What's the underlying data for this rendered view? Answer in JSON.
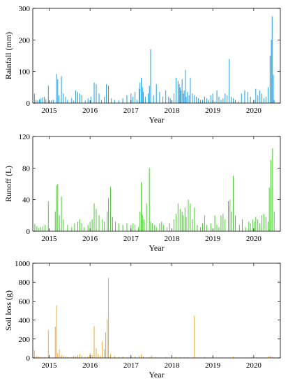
{
  "colors": {
    "rainfall": "#1f9ee0",
    "runoff": "#4cc934",
    "soil_loss": "#f2a72a"
  },
  "chart_data": [
    {
      "type": "bar",
      "id": "rainfall",
      "title": "",
      "xlabel": "Year",
      "ylabel": "Rainfall (mm)",
      "xlim": [
        2014.6,
        2020.65
      ],
      "ylim": [
        0,
        300
      ],
      "yticks": [
        0,
        100,
        200,
        300
      ],
      "xticks": [
        2015,
        2016,
        2017,
        2018,
        2019,
        2020
      ],
      "xtick_labels": [
        "2015",
        "2016",
        "2017",
        "2018",
        "2019",
        "2020"
      ],
      "series": [
        {
          "x": [
            2014.64,
            2014.68,
            2014.72,
            2014.76,
            2014.8,
            2014.84,
            2014.88,
            2014.92,
            2014.98,
            2015.05,
            2015.1,
            2015.18,
            2015.21,
            2015.24,
            2015.3,
            2015.35,
            2015.4,
            2015.45,
            2015.55,
            2015.6,
            2015.65,
            2015.7,
            2015.75,
            2015.8,
            2015.88,
            2015.95,
            2016.02,
            2016.1,
            2016.15,
            2016.22,
            2016.28,
            2016.35,
            2016.4,
            2016.45,
            2016.52,
            2016.6,
            2016.7,
            2016.8,
            2016.9,
            2017.0,
            2017.05,
            2017.1,
            2017.15,
            2017.2,
            2017.22,
            2017.25,
            2017.28,
            2017.3,
            2017.35,
            2017.42,
            2017.45,
            2017.48,
            2017.55,
            2017.62,
            2017.7,
            2017.78,
            2017.85,
            2017.92,
            2017.96,
            2018.05,
            2018.1,
            2018.15,
            2018.18,
            2018.2,
            2018.22,
            2018.25,
            2018.28,
            2018.3,
            2018.33,
            2018.35,
            2018.38,
            2018.42,
            2018.45,
            2018.5,
            2018.55,
            2018.6,
            2018.65,
            2018.7,
            2018.75,
            2018.8,
            2018.85,
            2018.9,
            2018.95,
            2019.0,
            2019.05,
            2019.1,
            2019.15,
            2019.2,
            2019.25,
            2019.3,
            2019.35,
            2019.4,
            2019.45,
            2019.5,
            2019.55,
            2019.62,
            2019.7,
            2019.78,
            2019.85,
            2019.92,
            2020.0,
            2020.05,
            2020.1,
            2020.15,
            2020.2,
            2020.25,
            2020.3,
            2020.35,
            2020.4,
            2020.43,
            2020.45,
            2020.48,
            2020.5
          ],
          "y": [
            30,
            10,
            8,
            12,
            15,
            18,
            20,
            12,
            55,
            8,
            10,
            92,
            75,
            25,
            85,
            30,
            20,
            10,
            15,
            8,
            40,
            35,
            30,
            25,
            8,
            15,
            20,
            65,
            60,
            30,
            10,
            20,
            60,
            55,
            15,
            10,
            8,
            15,
            25,
            30,
            20,
            35,
            10,
            45,
            65,
            80,
            50,
            35,
            20,
            30,
            55,
            170,
            25,
            60,
            35,
            20,
            40,
            20,
            15,
            30,
            80,
            70,
            60,
            50,
            40,
            75,
            30,
            40,
            105,
            20,
            35,
            25,
            80,
            30,
            25,
            20,
            15,
            10,
            10,
            20,
            15,
            10,
            25,
            30,
            5,
            40,
            20,
            10,
            15,
            30,
            25,
            140,
            20,
            15,
            10,
            5,
            30,
            40,
            35,
            20,
            10,
            45,
            25,
            40,
            30,
            15,
            20,
            50,
            150,
            200,
            275,
            90,
            10
          ]
        }
      ]
    },
    {
      "type": "bar",
      "id": "runoff",
      "title": "",
      "xlabel": "Year",
      "ylabel": "Runoff (L)",
      "xlim": [
        2014.6,
        2020.65
      ],
      "ylim": [
        0,
        120
      ],
      "yticks": [
        0,
        40,
        80,
        120
      ],
      "xticks": [
        2015,
        2016,
        2017,
        2018,
        2019,
        2020
      ],
      "xtick_labels": [
        "2015",
        "2016",
        "2017",
        "2018",
        "2019",
        "2020"
      ],
      "series": [
        {
          "x": [
            2014.65,
            2014.7,
            2014.75,
            2014.8,
            2014.85,
            2014.9,
            2014.98,
            2015.15,
            2015.18,
            2015.21,
            2015.25,
            2015.3,
            2015.35,
            2015.45,
            2015.55,
            2015.62,
            2015.7,
            2015.75,
            2015.8,
            2015.85,
            2015.95,
            2016.0,
            2016.05,
            2016.1,
            2016.15,
            2016.22,
            2016.3,
            2016.35,
            2016.42,
            2016.45,
            2016.5,
            2016.55,
            2016.62,
            2016.7,
            2016.8,
            2016.9,
            2017.0,
            2017.05,
            2017.1,
            2017.18,
            2017.22,
            2017.25,
            2017.28,
            2017.32,
            2017.38,
            2017.45,
            2017.48,
            2017.52,
            2017.58,
            2017.62,
            2017.7,
            2017.75,
            2017.8,
            2017.88,
            2017.95,
            2018.05,
            2018.1,
            2018.15,
            2018.2,
            2018.25,
            2018.28,
            2018.32,
            2018.35,
            2018.4,
            2018.45,
            2018.5,
            2018.55,
            2018.62,
            2018.7,
            2018.75,
            2018.8,
            2018.85,
            2018.95,
            2019.05,
            2019.1,
            2019.15,
            2019.2,
            2019.25,
            2019.3,
            2019.38,
            2019.42,
            2019.45,
            2019.5,
            2019.55,
            2019.65,
            2019.72,
            2019.8,
            2019.88,
            2019.92,
            2019.98,
            2020.02,
            2020.05,
            2020.1,
            2020.15,
            2020.2,
            2020.25,
            2020.3,
            2020.35,
            2020.38,
            2020.42,
            2020.46,
            2020.5
          ],
          "y": [
            9,
            6,
            4,
            5,
            6,
            8,
            38,
            25,
            58,
            60,
            20,
            44,
            15,
            8,
            5,
            10,
            12,
            15,
            10,
            5,
            8,
            12,
            15,
            35,
            28,
            20,
            15,
            12,
            25,
            42,
            56,
            18,
            12,
            10,
            8,
            10,
            8,
            10,
            8,
            5,
            25,
            62,
            20,
            15,
            35,
            80,
            12,
            10,
            8,
            5,
            10,
            12,
            8,
            5,
            10,
            15,
            22,
            35,
            28,
            25,
            20,
            30,
            18,
            40,
            35,
            15,
            30,
            8,
            5,
            10,
            20,
            8,
            10,
            20,
            8,
            5,
            20,
            22,
            15,
            38,
            40,
            25,
            70,
            20,
            8,
            15,
            5,
            12,
            10,
            15,
            12,
            18,
            15,
            10,
            20,
            22,
            18,
            12,
            55,
            90,
            105,
            25
          ]
        }
      ]
    },
    {
      "type": "bar",
      "id": "soil_loss",
      "title": "",
      "xlabel": "Year",
      "ylabel": "Soil loss (g)",
      "xlim": [
        2014.6,
        2020.65
      ],
      "ylim": [
        0,
        1000
      ],
      "yticks": [
        0,
        200,
        400,
        600,
        800,
        1000
      ],
      "xticks": [
        2015,
        2016,
        2017,
        2018,
        2019,
        2020
      ],
      "xtick_labels": [
        "2015",
        "2016",
        "2017",
        "2018",
        "2019",
        "2020"
      ],
      "series": [
        {
          "x": [
            2014.64,
            2014.7,
            2014.75,
            2014.8,
            2014.85,
            2014.9,
            2014.98,
            2015.1,
            2015.15,
            2015.18,
            2015.21,
            2015.25,
            2015.3,
            2015.35,
            2015.4,
            2015.45,
            2015.55,
            2015.6,
            2015.65,
            2015.7,
            2015.75,
            2015.8,
            2015.88,
            2015.95,
            2016.0,
            2016.05,
            2016.1,
            2016.15,
            2016.2,
            2016.25,
            2016.3,
            2016.35,
            2016.38,
            2016.42,
            2016.45,
            2016.5,
            2016.6,
            2016.7,
            2016.8,
            2016.9,
            2017.0,
            2017.1,
            2017.2,
            2017.25,
            2017.3,
            2017.45,
            2017.5,
            2017.6,
            2017.75,
            2017.85,
            2018.0,
            2018.1,
            2018.2,
            2018.3,
            2018.4,
            2018.5,
            2018.55,
            2018.6,
            2018.7,
            2018.8,
            2018.9,
            2019.0,
            2019.2,
            2019.4,
            2019.5,
            2019.6,
            2019.8,
            2019.95,
            2020.1,
            2020.2,
            2020.3,
            2020.35,
            2020.4,
            2020.45,
            2020.5
          ],
          "y": [
            80,
            20,
            15,
            10,
            5,
            10,
            295,
            5,
            330,
            555,
            50,
            90,
            30,
            20,
            15,
            10,
            10,
            20,
            15,
            30,
            40,
            25,
            10,
            15,
            50,
            30,
            335,
            100,
            40,
            25,
            175,
            90,
            270,
            410,
            845,
            40,
            20,
            10,
            15,
            5,
            10,
            15,
            20,
            35,
            15,
            10,
            25,
            10,
            5,
            10,
            5,
            10,
            8,
            5,
            8,
            5,
            445,
            5,
            5,
            10,
            5,
            8,
            5,
            5,
            15,
            5,
            5,
            8,
            5,
            5,
            5,
            15,
            20,
            10,
            8
          ]
        }
      ]
    }
  ]
}
